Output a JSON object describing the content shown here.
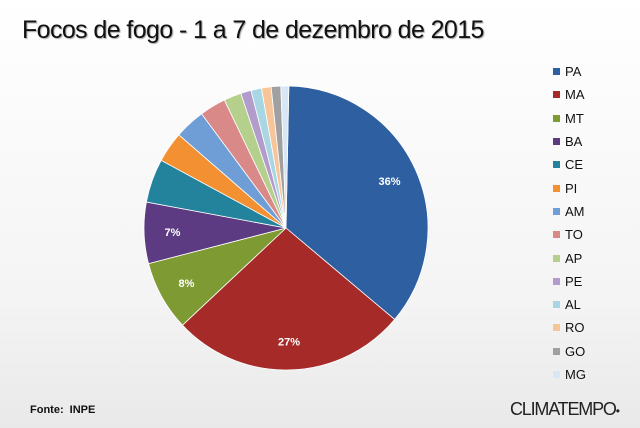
{
  "chart_data": {
    "type": "pie",
    "title": "Focos de fogo - 1 a 7 de dezembro de 2015",
    "legend_position": "right",
    "labels": [
      "PA",
      "MA",
      "MT",
      "BA",
      "CE",
      "PI",
      "AM",
      "TO",
      "AP",
      "PE",
      "AL",
      "RO",
      "GO",
      "MG"
    ],
    "values": [
      36,
      27,
      8,
      7,
      5,
      3.5,
      3.5,
      3,
      2,
      1.2,
      1.2,
      1.1,
      1.1,
      0.9
    ],
    "data_labels": [
      "36%",
      "27%",
      "8%",
      "7%",
      "",
      "",
      "",
      "",
      "",
      "",
      "",
      "",
      "",
      ""
    ],
    "colors": [
      "#2e5fa1",
      "#a62b28",
      "#7e9a32",
      "#5d3b82",
      "#23839d",
      "#f39032",
      "#6f9ed6",
      "#d98a88",
      "#b5d08d",
      "#b19ccb",
      "#a8d6e3",
      "#f8c59b",
      "#a0a0a0",
      "#d9e6f5"
    ]
  },
  "footer": {
    "source": "Fonte: INPE",
    "brand": "CLIMATEMPO"
  }
}
